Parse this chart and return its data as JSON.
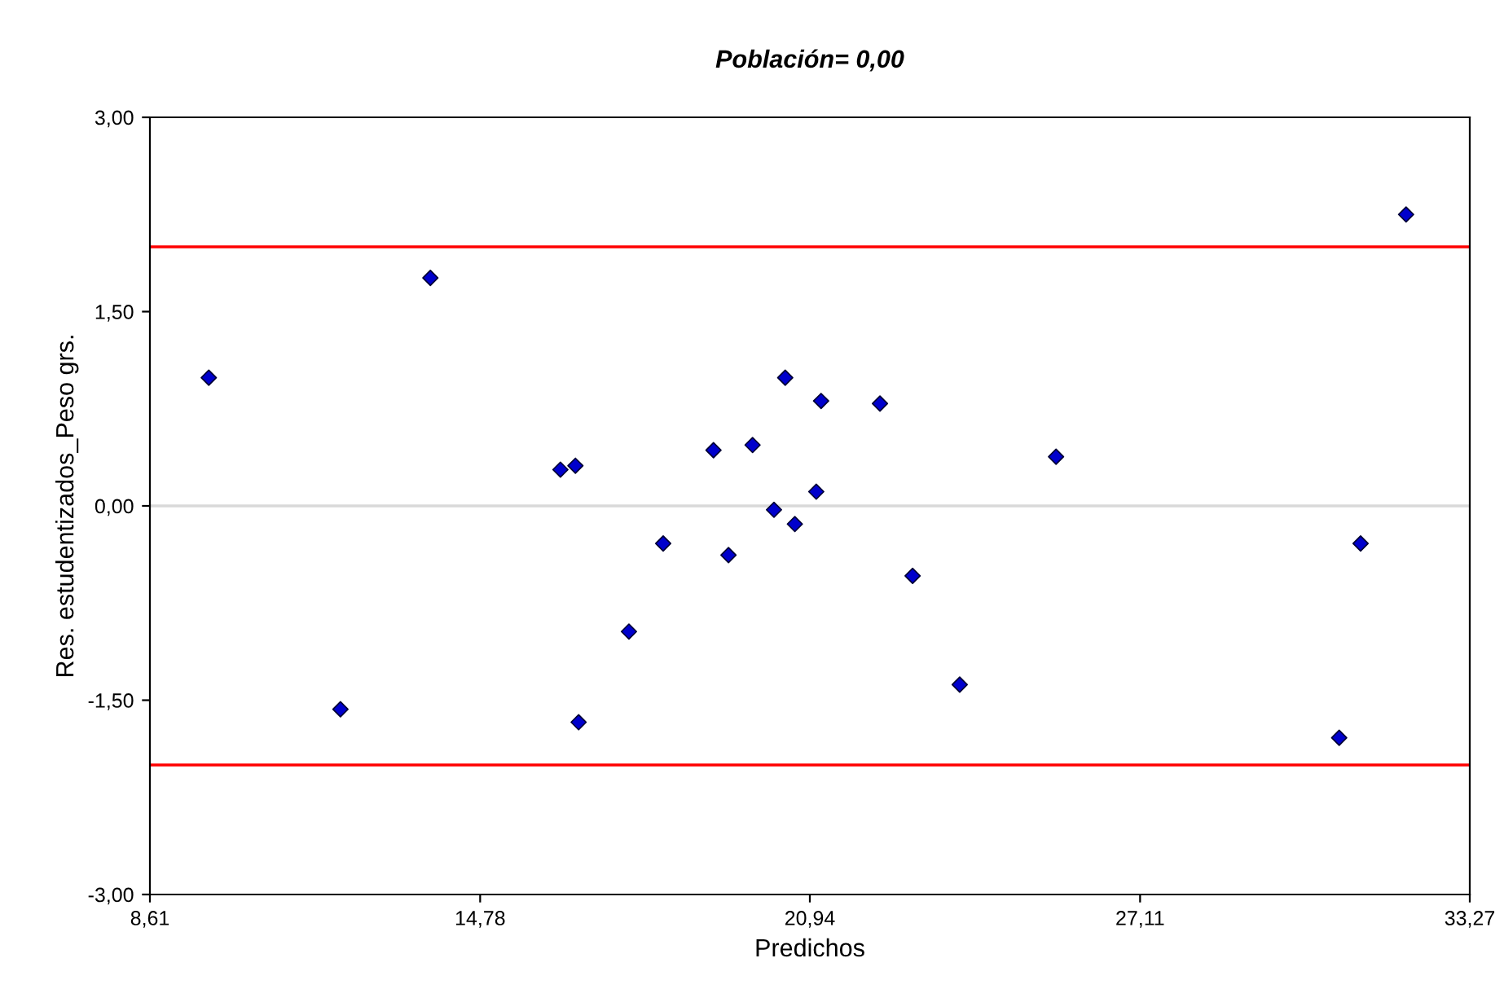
{
  "chart_data": {
    "type": "scatter",
    "title": "Población= 0,00",
    "xlabel": "Predichos",
    "ylabel": "Res. estudentizados_Peso grs.",
    "x": [
      9.71,
      12.17,
      13.85,
      16.28,
      16.56,
      16.62,
      17.56,
      18.2,
      19.14,
      19.42,
      19.87,
      20.27,
      20.48,
      20.66,
      21.06,
      21.15,
      22.25,
      22.86,
      23.74,
      25.54,
      30.83,
      31.23,
      32.08
    ],
    "values": [
      0.99,
      -1.57,
      1.76,
      0.28,
      0.31,
      -1.67,
      -0.97,
      -0.29,
      0.43,
      -0.38,
      0.47,
      -0.03,
      0.99,
      -0.14,
      0.11,
      0.81,
      0.79,
      -0.54,
      -1.38,
      0.38,
      -1.79,
      -0.29,
      2.25
    ],
    "color": "#0000cc",
    "marker": "diamond",
    "xlim": [
      8.61,
      33.27
    ],
    "xticks": [
      {
        "value": 8.61,
        "label": "8,61"
      },
      {
        "value": 14.78,
        "label": "14,78"
      },
      {
        "value": 20.94,
        "label": "20,94"
      },
      {
        "value": 27.11,
        "label": "27,11"
      },
      {
        "value": 33.27,
        "label": "33,27"
      }
    ],
    "ylim": [
      -3,
      3
    ],
    "yticks": [
      {
        "value": -3,
        "label": "-3,00"
      },
      {
        "value": -1.5,
        "label": "-1,50"
      },
      {
        "value": 0,
        "label": "0,00"
      },
      {
        "value": 1.5,
        "label": "1,50"
      },
      {
        "value": 3,
        "label": "3,00"
      }
    ],
    "ref_lines": [
      {
        "axis": "y",
        "value": 2,
        "color": "#ff0000"
      },
      {
        "axis": "y",
        "value": -2,
        "color": "#ff0000"
      },
      {
        "axis": "y",
        "value": 0,
        "color": "#d9d9d9"
      }
    ],
    "grid": false
  }
}
